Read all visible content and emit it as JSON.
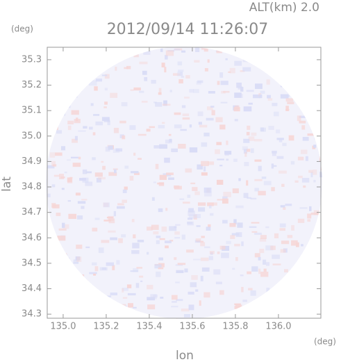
{
  "chart_data": {
    "type": "radar-field",
    "title": "2012/09/14 11:26:07",
    "subtitle": "ALT(km) 2.0",
    "x_label": "lon",
    "x_unit": "(deg)",
    "y_label": "lat",
    "y_unit": "(deg)",
    "xlim": [
      134.926,
      136.197
    ],
    "xticks": [
      {
        "value": 135,
        "label": "135.0"
      },
      135.2,
      135.4,
      135.6,
      135.8,
      {
        "value": 136,
        "label": "136.0"
      }
    ],
    "ylim": [
      34.284,
      35.349
    ],
    "yticks": [
      34.3,
      34.4,
      34.5,
      34.6,
      34.7,
      34.8,
      34.9,
      {
        "value": 35,
        "label": "35.0"
      },
      35.1,
      35.2,
      35.3
    ],
    "grid": false
  }
}
